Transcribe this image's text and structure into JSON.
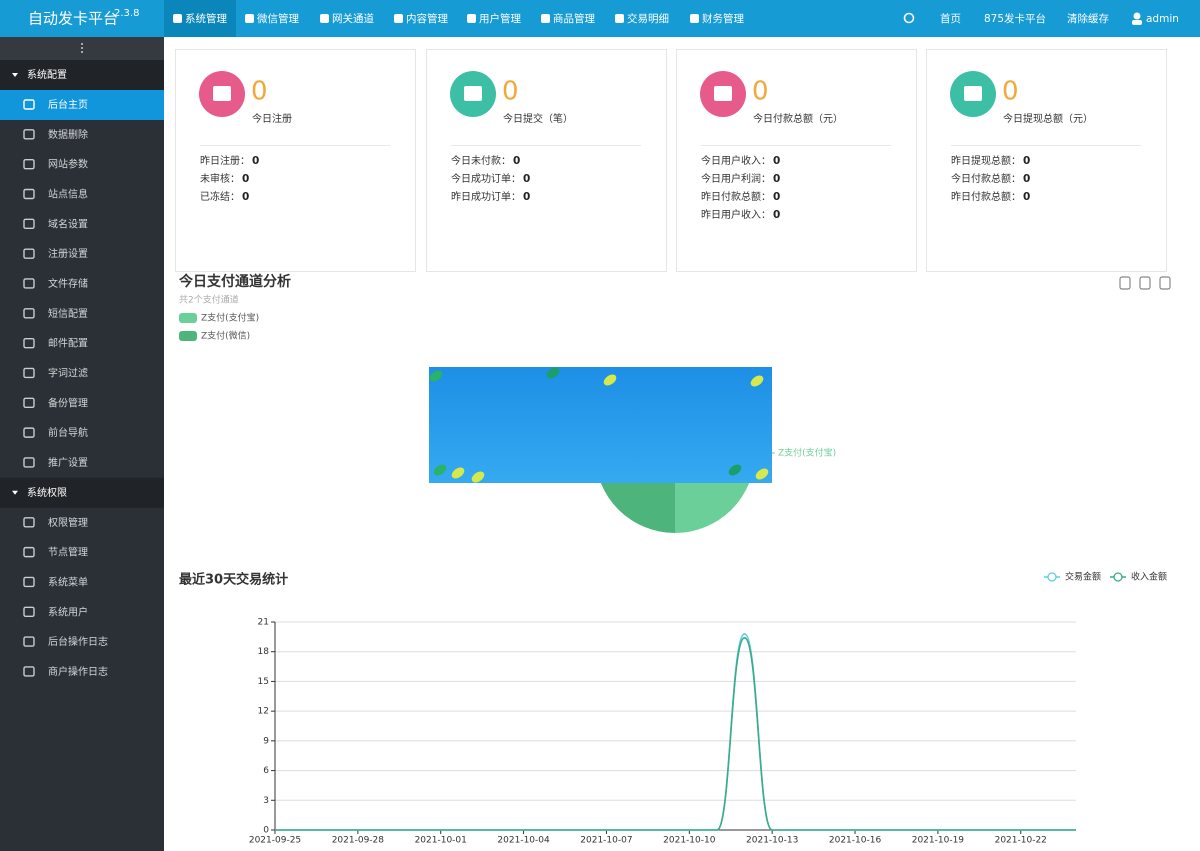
{
  "header": {
    "brand": "自动发卡平台",
    "version": "2.3.8",
    "nav": [
      "系统管理",
      "微信管理",
      "网关通道",
      "内容管理",
      "用户管理",
      "商品管理",
      "交易明细",
      "财务管理"
    ],
    "right": [
      "首页",
      "875发卡平台",
      "清除缓存",
      "admin"
    ]
  },
  "sidebar": {
    "groups": [
      {
        "title": "系统配置",
        "items": [
          "后台主页",
          "数据删除",
          "网站参数",
          "站点信息",
          "域名设置",
          "注册设置",
          "文件存储",
          "短信配置",
          "邮件配置",
          "字词过滤",
          "备份管理",
          "前台导航",
          "推广设置"
        ]
      },
      {
        "title": "系统权限",
        "items": [
          "权限管理",
          "节点管理",
          "系统菜单",
          "系统用户",
          "后台操作日志",
          "商户操作日志"
        ]
      }
    ]
  },
  "stat_cards": [
    {
      "value": 0,
      "label": "今日注册",
      "rows": [
        {
          "label": "昨日注册：",
          "value": 0
        },
        {
          "label": "未审核：",
          "value": 0
        },
        {
          "label": "已冻结：",
          "value": 0
        }
      ]
    },
    {
      "value": 0,
      "label": "今日提交（笔）",
      "rows": [
        {
          "label": "今日未付款：",
          "value": 0
        },
        {
          "label": "今日成功订单：",
          "value": 0
        },
        {
          "label": "昨日成功订单：",
          "value": 0
        }
      ]
    },
    {
      "value": 0,
      "label": "今日付款总额（元）",
      "rows": [
        {
          "label": "今日用户收入：",
          "value": 0
        },
        {
          "label": "今日用户利润：",
          "value": 0
        },
        {
          "label": "昨日付款总额：",
          "value": 0
        },
        {
          "label": "昨日用户收入：",
          "value": 0
        }
      ]
    },
    {
      "value": 0,
      "label": "今日提现总额（元）",
      "rows": [
        {
          "label": "昨日提现总额：",
          "value": 0
        },
        {
          "label": "今日付款总额：",
          "value": 0
        },
        {
          "label": "昨日付款总额：",
          "value": 0
        }
      ]
    }
  ],
  "chart_data": [
    {
      "type": "pie",
      "title": "今日支付通道分析",
      "subtitle": "共2个支付通道",
      "categories": [
        "Z支付(支付宝)",
        "Z支付(微信)"
      ],
      "values": [
        1,
        1
      ],
      "colors": [
        "#6acf98",
        "#4db57c"
      ]
    },
    {
      "type": "line",
      "title": "最近30天交易统计",
      "categories": [
        "2021-09-25",
        null,
        null,
        "2021-09-28",
        null,
        null,
        "2021-10-01",
        null,
        null,
        "2021-10-04",
        null,
        null,
        "2021-10-07",
        null,
        null,
        "2021-10-10",
        null,
        null,
        "2021-10-13",
        null,
        null,
        "2021-10-16",
        null,
        null,
        "2021-10-19",
        null,
        null,
        "2021-10-22",
        null,
        null
      ],
      "series": [
        {
          "name": "交易金额",
          "color": "#5fcde0",
          "values": [
            0,
            0,
            0,
            0,
            0,
            0,
            0,
            0,
            0,
            0,
            0,
            0,
            0,
            0,
            0,
            0,
            0,
            19.8,
            0,
            0,
            0,
            0,
            0,
            0,
            0,
            0,
            0,
            0,
            0,
            0
          ]
        },
        {
          "name": "收入金额",
          "color": "#3aab87",
          "values": [
            0,
            0,
            0,
            0,
            0,
            0,
            0,
            0,
            0,
            0,
            0,
            0,
            0,
            0,
            0,
            0,
            0,
            19.4,
            0,
            0,
            0,
            0,
            0,
            0,
            0,
            0,
            0,
            0,
            0,
            0
          ]
        }
      ],
      "ylim": [
        0,
        21
      ],
      "yticks": [
        0,
        3,
        6,
        9,
        12,
        15,
        18,
        21
      ],
      "grid": true,
      "legend": "top-right"
    }
  ]
}
